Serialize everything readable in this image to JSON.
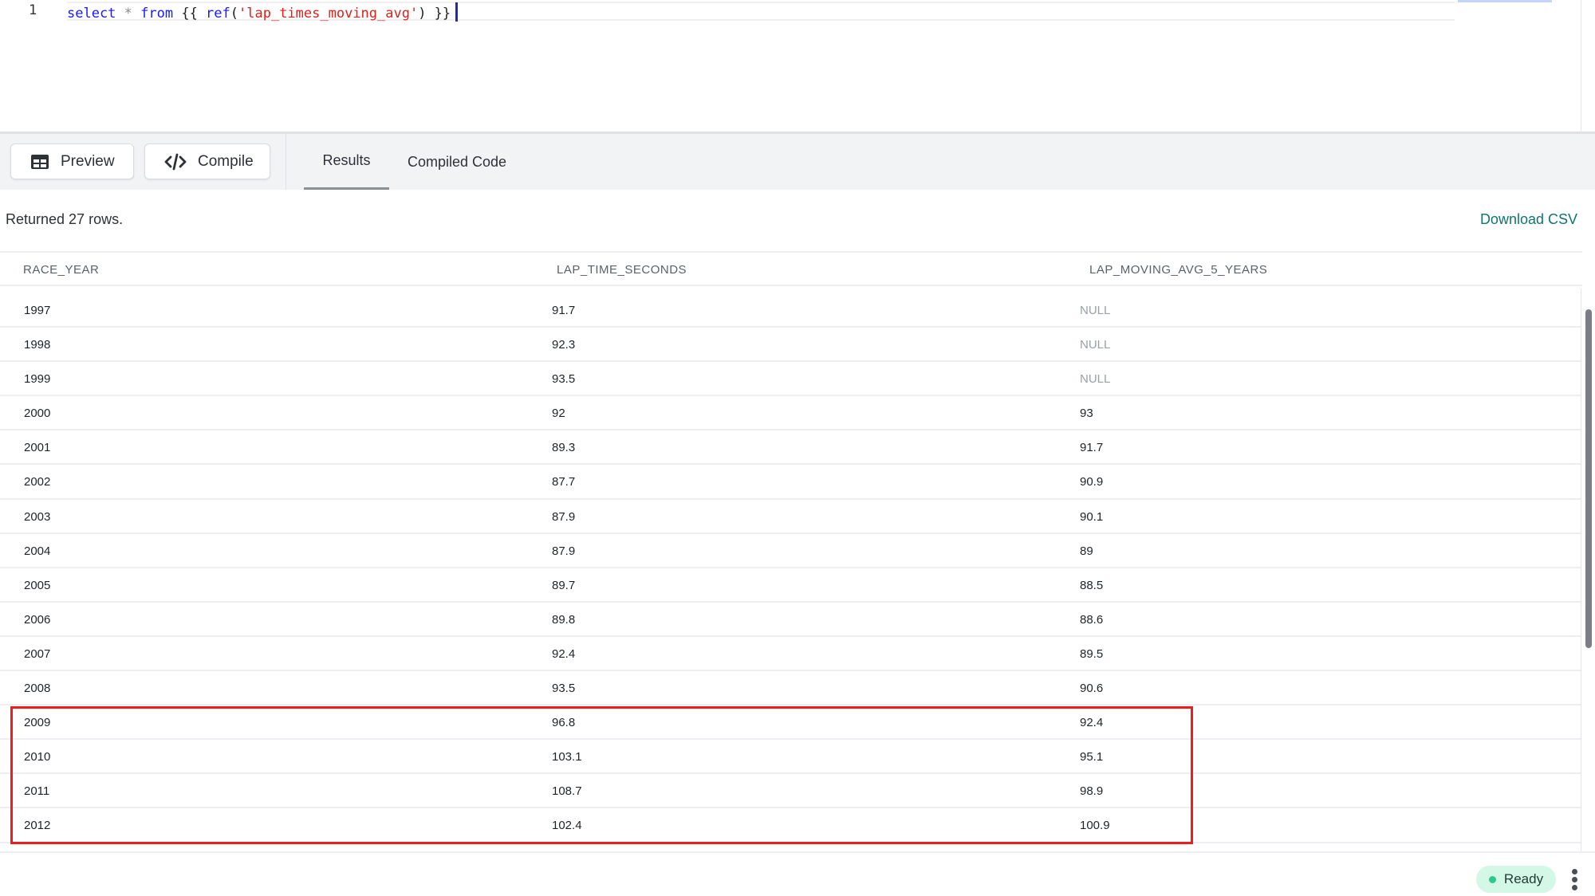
{
  "editor": {
    "line_number": "1",
    "code_tokens": {
      "t1": "select",
      "t2": " * ",
      "t3": "from",
      "t4": " {{ ",
      "t5": "ref",
      "t6": "(",
      "t7": "'lap_times_moving_avg'",
      "t8": ") }}"
    }
  },
  "toolbar": {
    "preview_label": "Preview",
    "compile_label": "Compile",
    "tabs": [
      {
        "label": "Results",
        "active": true
      },
      {
        "label": "Compiled Code",
        "active": false
      }
    ]
  },
  "results": {
    "summary": "Returned 27 rows.",
    "download_label": "Download CSV",
    "columns": [
      "RACE_YEAR",
      "LAP_TIME_SECONDS",
      "LAP_MOVING_AVG_5_YEARS"
    ],
    "rows": [
      [
        "1997",
        "91.7",
        "NULL"
      ],
      [
        "1998",
        "92.3",
        "NULL"
      ],
      [
        "1999",
        "93.5",
        "NULL"
      ],
      [
        "2000",
        "92",
        "93"
      ],
      [
        "2001",
        "89.3",
        "91.7"
      ],
      [
        "2002",
        "87.7",
        "90.9"
      ],
      [
        "2003",
        "87.9",
        "90.1"
      ],
      [
        "2004",
        "87.9",
        "89"
      ],
      [
        "2005",
        "89.7",
        "88.5"
      ],
      [
        "2006",
        "89.8",
        "88.6"
      ],
      [
        "2007",
        "92.4",
        "89.5"
      ],
      [
        "2008",
        "93.5",
        "90.6"
      ],
      [
        "2009",
        "96.8",
        "92.4"
      ],
      [
        "2010",
        "103.1",
        "95.1"
      ],
      [
        "2011",
        "108.7",
        "98.9"
      ],
      [
        "2012",
        "102.4",
        "100.9"
      ]
    ],
    "highlight_color": "#ee1c1c"
  },
  "status": {
    "label": "Ready",
    "color": "#2cc98b"
  }
}
